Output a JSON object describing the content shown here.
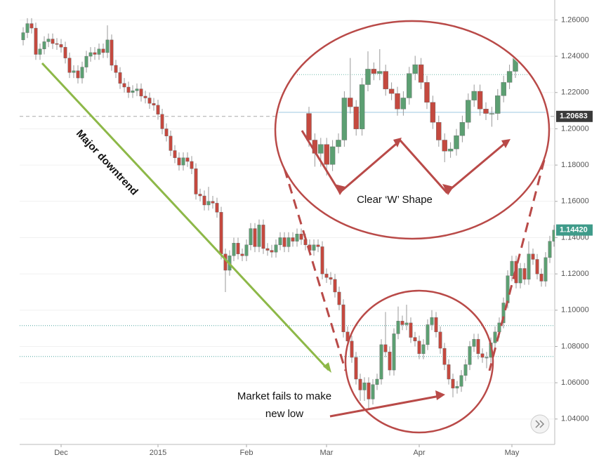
{
  "chart_data": {
    "type": "candlestick",
    "up_color": "#5c9f72",
    "down_color": "#c4493f",
    "ylim": [
      1.026,
      1.271
    ],
    "yticks": [
      {
        "value": 1.04,
        "label": "1.04000"
      },
      {
        "value": 1.06,
        "label": "1.06000"
      },
      {
        "value": 1.08,
        "label": "1.08000"
      },
      {
        "value": 1.1,
        "label": "1.10000"
      },
      {
        "value": 1.12,
        "label": "1.12000"
      },
      {
        "value": 1.14,
        "label": "1.14000"
      },
      {
        "value": 1.16,
        "label": "1.16000"
      },
      {
        "value": 1.18,
        "label": "1.18000"
      },
      {
        "value": 1.2,
        "label": "1.20000"
      },
      {
        "value": 1.22,
        "label": "1.22000"
      },
      {
        "value": 1.24,
        "label": "1.24000"
      },
      {
        "value": 1.26,
        "label": "1.26000"
      }
    ],
    "grid": true,
    "xticks": [
      {
        "value": 9,
        "label": "Dec"
      },
      {
        "value": 32,
        "label": "2015"
      },
      {
        "value": 53,
        "label": "Feb"
      },
      {
        "value": 72,
        "label": "Mar"
      },
      {
        "value": 94,
        "label": "Apr"
      },
      {
        "value": 116,
        "label": "May"
      }
    ],
    "price_labels": [
      {
        "value": 1.20683,
        "label": "1.20683",
        "color": "#3a3a3a"
      },
      {
        "value": 1.1442,
        "label": "1.14420",
        "color": "#3f9b8a"
      }
    ],
    "reference_lines": [
      1.0915,
      1.0745
    ],
    "annotations": [
      "Major downtrend",
      "Clear ‘W’ Shape",
      "Market fails to make",
      "new low"
    ],
    "open": [
      1.249,
      1.253,
      1.258,
      1.2555,
      1.241,
      1.244,
      1.248,
      1.2495,
      1.247,
      1.2465,
      1.245,
      1.239,
      1.231,
      1.232,
      1.228,
      1.234,
      1.24,
      1.242,
      1.241,
      1.244,
      1.242,
      1.249,
      1.235,
      1.231,
      1.225,
      1.223,
      1.22,
      1.221,
      1.222,
      1.218,
      1.217,
      1.214,
      1.213,
      1.208,
      1.2,
      1.196,
      1.188,
      1.184,
      1.18,
      1.184,
      1.182,
      1.178,
      1.164,
      1.163,
      1.158,
      1.16,
      1.159,
      1.154,
      1.131,
      1.122,
      1.13,
      1.137,
      1.131,
      1.13,
      1.136,
      1.145,
      1.135,
      1.147,
      1.134,
      1.133,
      1.132,
      1.136,
      1.14,
      1.135,
      1.14,
      1.138,
      1.142,
      1.139,
      1.136,
      1.133,
      1.136,
      1.135,
      1.12,
      1.118,
      1.117,
      1.11,
      1.103,
      1.088,
      1.083,
      1.074,
      1.062,
      1.056,
      1.06,
      1.051,
      1.059,
      1.062,
      1.081,
      1.077,
      1.067,
      1.087,
      1.094,
      1.092,
      1.093,
      1.085,
      1.083,
      1.076,
      1.081,
      1.092,
      1.096,
      1.088,
      1.079,
      1.07,
      1.062,
      1.057,
      1.058,
      1.064,
      1.07,
      1.08,
      1.084,
      1.076,
      1.074,
      1.074,
      1.082,
      1.088,
      1.093,
      1.104,
      1.119,
      1.127,
      1.115,
      1.123,
      1.117,
      1.131,
      1.128,
      1.12,
      1.116,
      1.129,
      1.138
    ],
    "high": [
      1.256,
      1.261,
      1.261,
      1.2585,
      1.247,
      1.251,
      1.2525,
      1.2525,
      1.25,
      1.2495,
      1.248,
      1.242,
      1.235,
      1.235,
      1.237,
      1.243,
      1.245,
      1.245,
      1.247,
      1.247,
      1.257,
      1.252,
      1.238,
      1.234,
      1.228,
      1.226,
      1.224,
      1.225,
      1.225,
      1.221,
      1.22,
      1.217,
      1.216,
      1.211,
      1.203,
      1.199,
      1.191,
      1.187,
      1.187,
      1.187,
      1.185,
      1.181,
      1.167,
      1.166,
      1.168,
      1.163,
      1.162,
      1.157,
      1.134,
      1.133,
      1.14,
      1.14,
      1.134,
      1.139,
      1.148,
      1.148,
      1.15,
      1.15,
      1.137,
      1.136,
      1.139,
      1.143,
      1.143,
      1.143,
      1.143,
      1.145,
      1.145,
      1.142,
      1.139,
      1.139,
      1.139,
      1.138,
      1.123,
      1.121,
      1.12,
      1.113,
      1.106,
      1.091,
      1.086,
      1.077,
      1.065,
      1.063,
      1.063,
      1.062,
      1.065,
      1.084,
      1.099,
      1.08,
      1.09,
      1.102,
      1.097,
      1.103,
      1.096,
      1.088,
      1.086,
      1.084,
      1.095,
      1.1,
      1.099,
      1.091,
      1.082,
      1.073,
      1.065,
      1.061,
      1.067,
      1.073,
      1.083,
      1.087,
      1.087,
      1.079,
      1.077,
      1.085,
      1.091,
      1.096,
      1.107,
      1.122,
      1.13,
      1.13,
      1.126,
      1.126,
      1.138,
      1.134,
      1.131,
      1.123,
      1.132,
      1.141,
      1.147
    ],
    "low": [
      1.246,
      1.25,
      1.2525,
      1.238,
      1.238,
      1.241,
      1.245,
      1.244,
      1.2435,
      1.242,
      1.236,
      1.228,
      1.228,
      1.225,
      1.225,
      1.231,
      1.237,
      1.238,
      1.238,
      1.239,
      1.239,
      1.232,
      1.228,
      1.222,
      1.22,
      1.217,
      1.217,
      1.218,
      1.215,
      1.214,
      1.211,
      1.21,
      1.205,
      1.197,
      1.193,
      1.185,
      1.181,
      1.177,
      1.177,
      1.179,
      1.175,
      1.161,
      1.16,
      1.155,
      1.155,
      1.156,
      1.151,
      1.128,
      1.11,
      1.119,
      1.127,
      1.128,
      1.127,
      1.127,
      1.133,
      1.132,
      1.132,
      1.131,
      1.13,
      1.129,
      1.129,
      1.133,
      1.132,
      1.132,
      1.135,
      1.135,
      1.136,
      1.133,
      1.13,
      1.13,
      1.132,
      1.117,
      1.115,
      1.114,
      1.107,
      1.1,
      1.085,
      1.08,
      1.071,
      1.059,
      1.05,
      1.05,
      1.046,
      1.048,
      1.056,
      1.059,
      1.074,
      1.064,
      1.064,
      1.084,
      1.089,
      1.089,
      1.082,
      1.08,
      1.073,
      1.073,
      1.078,
      1.089,
      1.085,
      1.076,
      1.067,
      1.059,
      1.052,
      1.054,
      1.055,
      1.061,
      1.067,
      1.077,
      1.073,
      1.071,
      1.068,
      1.071,
      1.079,
      1.085,
      1.09,
      1.101,
      1.116,
      1.112,
      1.112,
      1.114,
      1.114,
      1.125,
      1.117,
      1.113,
      1.113,
      1.126,
      1.135
    ],
    "close": [
      1.253,
      1.258,
      1.2555,
      1.241,
      1.244,
      1.248,
      1.2495,
      1.247,
      1.2465,
      1.245,
      1.239,
      1.231,
      1.232,
      1.228,
      1.234,
      1.24,
      1.242,
      1.241,
      1.244,
      1.242,
      1.249,
      1.235,
      1.231,
      1.225,
      1.223,
      1.22,
      1.221,
      1.222,
      1.218,
      1.217,
      1.214,
      1.213,
      1.208,
      1.2,
      1.196,
      1.188,
      1.184,
      1.18,
      1.184,
      1.182,
      1.178,
      1.164,
      1.163,
      1.158,
      1.16,
      1.159,
      1.154,
      1.131,
      1.122,
      1.13,
      1.137,
      1.131,
      1.13,
      1.136,
      1.145,
      1.135,
      1.147,
      1.134,
      1.133,
      1.132,
      1.136,
      1.14,
      1.135,
      1.14,
      1.138,
      1.142,
      1.139,
      1.136,
      1.133,
      1.136,
      1.135,
      1.12,
      1.118,
      1.117,
      1.11,
      1.103,
      1.088,
      1.083,
      1.074,
      1.062,
      1.056,
      1.06,
      1.051,
      1.059,
      1.062,
      1.081,
      1.077,
      1.067,
      1.087,
      1.094,
      1.092,
      1.093,
      1.085,
      1.083,
      1.076,
      1.081,
      1.092,
      1.096,
      1.088,
      1.079,
      1.07,
      1.062,
      1.057,
      1.058,
      1.064,
      1.07,
      1.08,
      1.084,
      1.076,
      1.074,
      1.074,
      1.082,
      1.088,
      1.093,
      1.104,
      1.119,
      1.127,
      1.115,
      1.123,
      1.117,
      1.131,
      1.128,
      1.12,
      1.116,
      1.129,
      1.138,
      1.1442
    ]
  }
}
